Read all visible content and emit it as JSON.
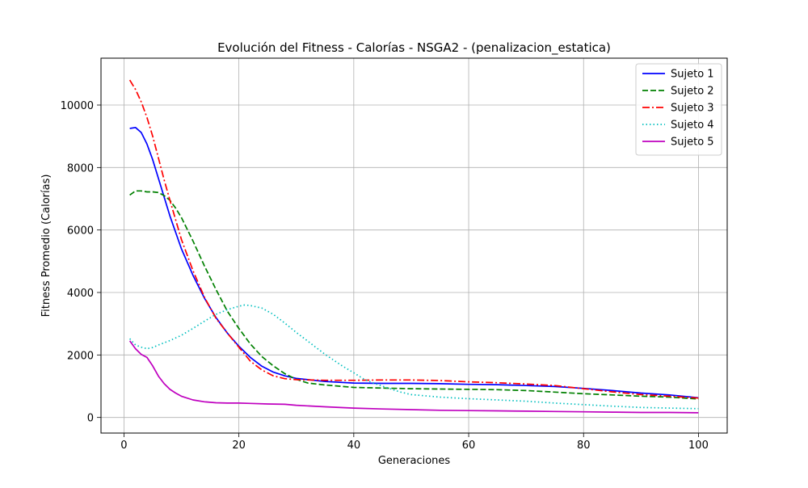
{
  "chart_data": {
    "type": "line",
    "title": "Evolución del Fitness - Calorías - NSGA2 - (penalizacion_estatica)",
    "xlabel": "Generaciones",
    "ylabel": "Fitness Promedio (Calorías)",
    "xlim": [
      -4,
      105
    ],
    "ylim": [
      -500,
      11500
    ],
    "xticks": [
      0,
      20,
      40,
      60,
      80,
      100
    ],
    "yticks": [
      0,
      2000,
      4000,
      6000,
      8000,
      10000
    ],
    "xtick_labels": [
      "0",
      "20",
      "40",
      "60",
      "80",
      "100"
    ],
    "ytick_labels": [
      "0",
      "2000",
      "4000",
      "6000",
      "8000",
      "10000"
    ],
    "grid": true,
    "legend_position": "top-right",
    "series": [
      {
        "name": "Sujeto 1",
        "color": "#0000ff",
        "dash": "solid",
        "x": [
          1,
          2,
          3,
          4,
          5,
          6,
          8,
          10,
          12,
          14,
          16,
          18,
          20,
          22,
          24,
          26,
          28,
          30,
          35,
          40,
          45,
          50,
          55,
          60,
          65,
          70,
          75,
          80,
          85,
          90,
          95,
          100
        ],
        "y": [
          9250,
          9280,
          9120,
          8750,
          8250,
          7650,
          6450,
          5400,
          4550,
          3820,
          3200,
          2700,
          2280,
          1920,
          1640,
          1450,
          1330,
          1250,
          1150,
          1100,
          1090,
          1090,
          1080,
          1060,
          1050,
          1020,
          990,
          930,
          860,
          780,
          720,
          630
        ]
      },
      {
        "name": "Sujeto 2",
        "color": "#008000",
        "dash": "dashed",
        "x": [
          1,
          2,
          3,
          4,
          5,
          6,
          7,
          8,
          9,
          10,
          12,
          14,
          16,
          18,
          20,
          22,
          24,
          26,
          28,
          30,
          32,
          35,
          40,
          45,
          50,
          55,
          60,
          65,
          70,
          75,
          80,
          85,
          90,
          95,
          100
        ],
        "y": [
          7120,
          7250,
          7250,
          7220,
          7220,
          7200,
          7100,
          6950,
          6700,
          6400,
          5650,
          4850,
          4100,
          3400,
          2850,
          2350,
          1950,
          1650,
          1400,
          1220,
          1100,
          1040,
          960,
          940,
          920,
          910,
          900,
          890,
          860,
          810,
          760,
          720,
          680,
          650,
          590
        ]
      },
      {
        "name": "Sujeto 3",
        "color": "#ff0000",
        "dash": "dashdot",
        "x": [
          1,
          2,
          3,
          4,
          5,
          6,
          7,
          8,
          10,
          12,
          14,
          16,
          18,
          20,
          22,
          24,
          26,
          28,
          30,
          35,
          40,
          45,
          50,
          55,
          60,
          65,
          70,
          75,
          80,
          85,
          90,
          95,
          100
        ],
        "y": [
          10800,
          10500,
          10100,
          9600,
          9000,
          8300,
          7600,
          6950,
          5700,
          4700,
          3850,
          3180,
          2700,
          2250,
          1800,
          1520,
          1330,
          1240,
          1210,
          1190,
          1190,
          1200,
          1200,
          1180,
          1140,
          1110,
          1070,
          1020,
          920,
          820,
          730,
          680,
          620
        ]
      },
      {
        "name": "Sujeto 4",
        "color": "#00bfbf",
        "dash": "dotted",
        "x": [
          1,
          2,
          3,
          4,
          5,
          6,
          8,
          10,
          12,
          14,
          16,
          18,
          20,
          21,
          22,
          24,
          26,
          28,
          30,
          32,
          35,
          38,
          40,
          42,
          45,
          48,
          50,
          55,
          60,
          65,
          70,
          75,
          80,
          85,
          90,
          95,
          100
        ],
        "y": [
          2520,
          2320,
          2250,
          2200,
          2240,
          2320,
          2460,
          2630,
          2850,
          3080,
          3300,
          3450,
          3560,
          3600,
          3580,
          3500,
          3300,
          3020,
          2720,
          2440,
          2020,
          1650,
          1430,
          1200,
          1000,
          820,
          730,
          650,
          600,
          560,
          520,
          460,
          410,
          360,
          320,
          300,
          280
        ]
      },
      {
        "name": "Sujeto 5",
        "color": "#bf00bf",
        "dash": "solid",
        "x": [
          1,
          2,
          3,
          4,
          5,
          6,
          7,
          8,
          9,
          10,
          12,
          14,
          16,
          18,
          20,
          22,
          25,
          28,
          30,
          35,
          40,
          45,
          50,
          55,
          60,
          65,
          70,
          75,
          80,
          85,
          90,
          95,
          100
        ],
        "y": [
          2450,
          2200,
          2020,
          1920,
          1650,
          1320,
          1080,
          900,
          780,
          680,
          560,
          500,
          470,
          460,
          460,
          450,
          430,
          420,
          390,
          340,
          300,
          270,
          250,
          230,
          220,
          210,
          200,
          190,
          180,
          170,
          160,
          160,
          150
        ]
      }
    ]
  }
}
